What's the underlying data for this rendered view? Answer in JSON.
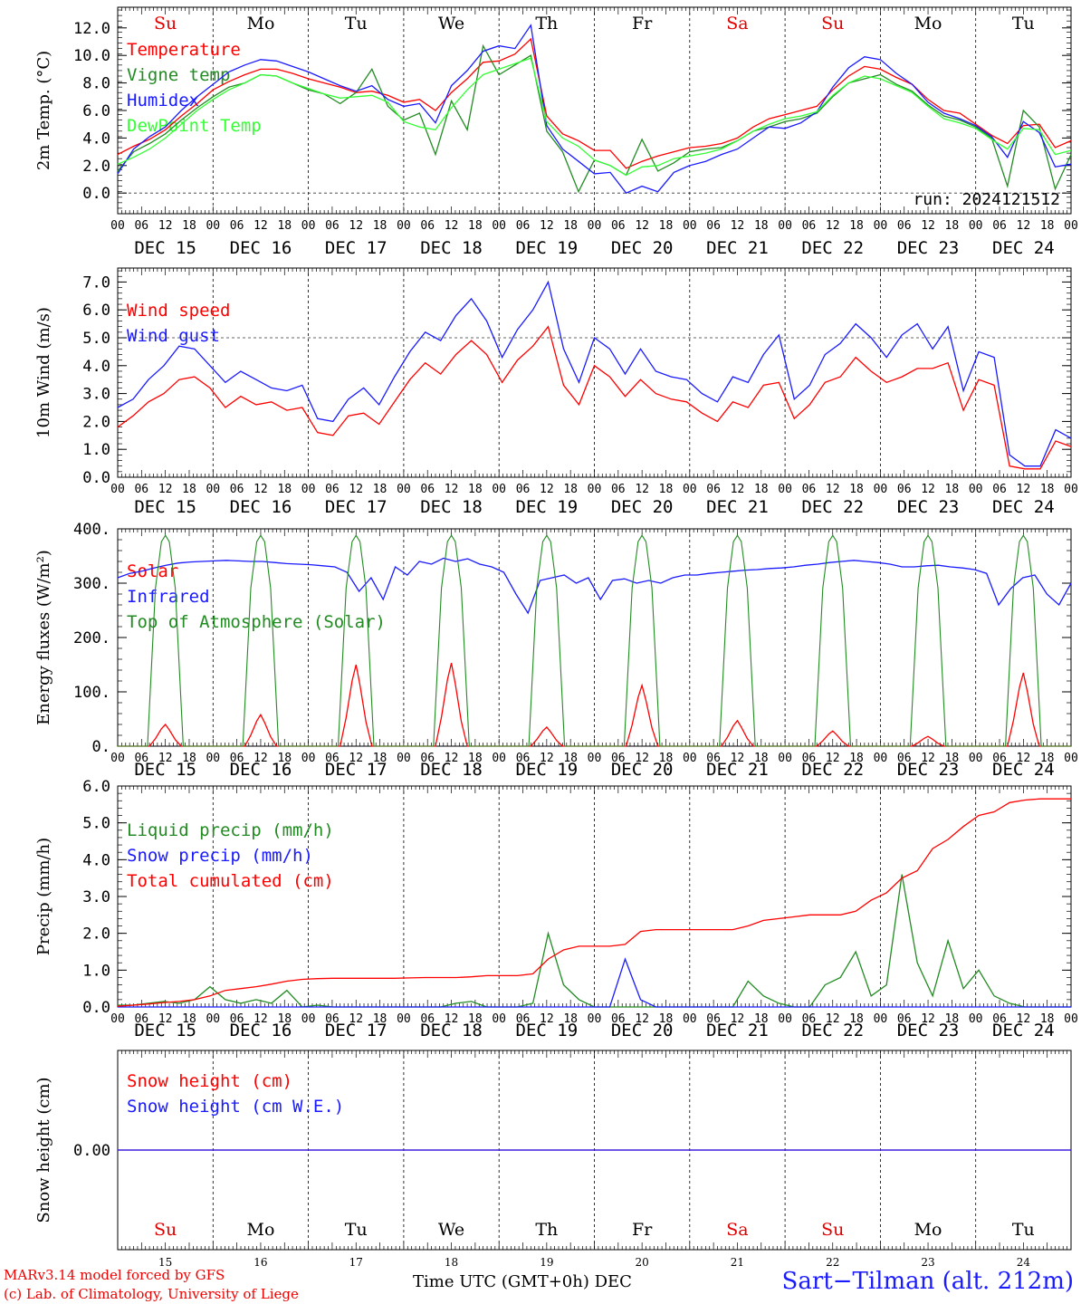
{
  "days": [
    "Su",
    "Mo",
    "Tu",
    "We",
    "Th",
    "Fr",
    "Sa",
    "Su",
    "Mo",
    "Tu"
  ],
  "day_colors": [
    "#e00000",
    "#000000",
    "#000000",
    "#000000",
    "#000000",
    "#000000",
    "#e00000",
    "#e00000",
    "#000000",
    "#000000"
  ],
  "dates": [
    "DEC 15",
    "DEC 16",
    "DEC 17",
    "DEC 18",
    "DEC 19",
    "DEC 20",
    "DEC 21",
    "DEC 22",
    "DEC 23",
    "DEC 24"
  ],
  "day_numbers": [
    "15",
    "16",
    "17",
    "18",
    "19",
    "20",
    "21",
    "22",
    "23",
    "24"
  ],
  "hour_ticks": [
    "00",
    "06",
    "12",
    "18"
  ],
  "hour_end": "00",
  "footer": {
    "model": "MARv3.14 model forced by GFS",
    "lab": "(c) Lab. of Climatology, University of Liege",
    "time_label": "Time UTC (GMT+0h) DEC",
    "station": "Sart−Tilman (alt. 212m)"
  },
  "chart_data": [
    {
      "type": "line",
      "ylabel": "2m Temp. (°C)",
      "ylim": [
        -1.5,
        13.5
      ],
      "yticks": [
        "0.0",
        "2.0",
        "4.0",
        "6.0",
        "8.0",
        "10.0",
        "12.0"
      ],
      "ytick_values": [
        0,
        2,
        4,
        6,
        8,
        10,
        12
      ],
      "ref_line": 0,
      "run_label": "run: 2024121512",
      "x_hours_step": 6,
      "series": [
        {
          "name": "Temperature",
          "color": "#ff0000",
          "values": [
            2.8,
            3.4,
            3.9,
            4.6,
            5.6,
            6.5,
            7.5,
            8.1,
            8.6,
            9.0,
            9.0,
            8.7,
            8.3,
            8.0,
            7.7,
            7.3,
            7.4,
            7.1,
            6.6,
            6.8,
            6.0,
            7.3,
            8.3,
            9.5,
            9.6,
            10.1,
            11.2,
            5.6,
            4.3,
            3.8,
            3.1,
            3.1,
            1.8,
            2.3,
            2.7,
            3.0,
            3.3,
            3.4,
            3.6,
            4.0,
            4.8,
            5.4,
            5.7,
            6.0,
            6.3,
            7.5,
            8.5,
            9.2,
            9.0,
            8.4,
            7.9,
            6.8,
            6.0,
            5.8,
            5.0,
            4.2,
            3.6,
            4.9,
            5.0,
            3.3,
            3.8
          ]
        },
        {
          "name": "Vigne temp",
          "color": "#228b22",
          "values": [
            1.6,
            3.0,
            3.6,
            4.3,
            5.3,
            6.2,
            7.0,
            7.7,
            8.0,
            8.6,
            8.5,
            8.0,
            7.5,
            7.2,
            6.5,
            7.3,
            9.0,
            6.3,
            5.3,
            5.8,
            2.8,
            6.7,
            4.6,
            10.7,
            8.6,
            9.3,
            10.0,
            4.5,
            3.0,
            0.1,
            2.4,
            2.0,
            1.3,
            3.9,
            1.6,
            2.2,
            3.0,
            3.2,
            3.3,
            3.8,
            4.5,
            4.8,
            5.2,
            5.4,
            5.8,
            7.0,
            8.0,
            8.3,
            8.6,
            7.9,
            7.4,
            6.4,
            5.6,
            5.3,
            4.8,
            4.0,
            0.5,
            6.0,
            4.8,
            0.3,
            2.8
          ]
        },
        {
          "name": "Humidex",
          "color": "#1a1aff",
          "values": [
            1.4,
            3.2,
            4.1,
            4.8,
            6.0,
            7.0,
            7.9,
            8.8,
            9.3,
            9.7,
            9.6,
            9.2,
            8.8,
            8.3,
            7.8,
            7.4,
            7.8,
            6.8,
            6.3,
            6.5,
            5.1,
            7.8,
            8.9,
            10.3,
            10.7,
            10.5,
            12.2,
            4.9,
            3.2,
            2.3,
            1.4,
            1.5,
            0.0,
            0.5,
            0.1,
            1.5,
            2.0,
            2.3,
            2.8,
            3.2,
            4.0,
            4.8,
            4.7,
            5.1,
            5.9,
            7.7,
            9.1,
            9.9,
            9.7,
            8.7,
            7.9,
            6.6,
            5.8,
            5.4,
            4.9,
            4.1,
            2.6,
            5.2,
            4.4,
            1.9,
            2.1
          ]
        },
        {
          "name": "DewPoint Temp",
          "color": "#33ff33",
          "values": [
            2.1,
            2.6,
            3.2,
            4.0,
            5.0,
            6.0,
            6.8,
            7.5,
            8.0,
            8.6,
            8.5,
            8.0,
            7.6,
            7.2,
            6.9,
            7.0,
            7.1,
            6.6,
            5.2,
            4.8,
            4.6,
            6.2,
            7.5,
            8.6,
            9.0,
            9.4,
            9.8,
            5.2,
            4.0,
            3.4,
            2.4,
            2.0,
            1.3,
            1.9,
            2.0,
            2.5,
            2.7,
            2.9,
            3.2,
            3.8,
            4.5,
            5.0,
            5.4,
            5.6,
            5.9,
            7.1,
            8.0,
            8.5,
            8.3,
            7.8,
            7.3,
            6.3,
            5.4,
            5.1,
            4.7,
            3.9,
            3.2,
            4.7,
            4.6,
            2.8,
            3.1
          ]
        }
      ]
    },
    {
      "type": "line",
      "ylabel": "10m Wind (m/s)",
      "ylim": [
        0,
        7.5
      ],
      "yticks": [
        "0.0",
        "1.0",
        "2.0",
        "3.0",
        "4.0",
        "5.0",
        "6.0",
        "7.0"
      ],
      "ytick_values": [
        0,
        1,
        2,
        3,
        4,
        5,
        6,
        7
      ],
      "ref_line": 5.0,
      "x_hours_step": 6,
      "series": [
        {
          "name": "Wind speed",
          "color": "#ff0000",
          "values": [
            1.8,
            2.2,
            2.7,
            3.0,
            3.5,
            3.6,
            3.2,
            2.5,
            2.9,
            2.6,
            2.7,
            2.4,
            2.5,
            1.6,
            1.5,
            2.2,
            2.3,
            1.9,
            2.7,
            3.5,
            4.1,
            3.7,
            4.4,
            4.9,
            4.4,
            3.4,
            4.2,
            4.7,
            5.4,
            3.3,
            2.6,
            4.0,
            3.6,
            2.9,
            3.5,
            3.0,
            2.8,
            2.7,
            2.3,
            2.0,
            2.7,
            2.5,
            3.3,
            3.4,
            2.1,
            2.6,
            3.4,
            3.6,
            4.3,
            3.8,
            3.4,
            3.6,
            3.9,
            3.9,
            4.1,
            2.4,
            3.5,
            3.3,
            0.4,
            0.3,
            0.3,
            1.3,
            1.1
          ]
        },
        {
          "name": "Wind gust",
          "color": "#1a1aff",
          "values": [
            2.5,
            2.8,
            3.5,
            4.0,
            4.7,
            4.6,
            4.0,
            3.4,
            3.8,
            3.5,
            3.2,
            3.1,
            3.3,
            2.1,
            2.0,
            2.8,
            3.2,
            2.6,
            3.6,
            4.5,
            5.2,
            4.9,
            5.8,
            6.4,
            5.6,
            4.3,
            5.3,
            6.0,
            7.0,
            4.6,
            3.4,
            5.0,
            4.6,
            3.7,
            4.6,
            3.8,
            3.6,
            3.5,
            3.0,
            2.7,
            3.6,
            3.4,
            4.4,
            5.1,
            2.8,
            3.3,
            4.4,
            4.8,
            5.5,
            5.0,
            4.3,
            5.1,
            5.5,
            4.6,
            5.4,
            3.1,
            4.5,
            4.3,
            0.8,
            0.4,
            0.4,
            1.7,
            1.4
          ]
        }
      ]
    },
    {
      "type": "line",
      "ylabel": "Energy fluxes (W/m²)",
      "ylim": [
        0,
        400
      ],
      "yticks": [
        "0.",
        "100.",
        "200.",
        "300.",
        "400."
      ],
      "ytick_values": [
        0,
        100,
        200,
        300,
        400
      ],
      "x_hours_step": 3,
      "series": [
        {
          "name": "Solar",
          "color": "#ff0000",
          "peaks": [
            40,
            58,
            150,
            153,
            35,
            112,
            47,
            28,
            18,
            135
          ],
          "peak_hour": 12
        },
        {
          "name": "Infrared",
          "color": "#1a1aff",
          "values": [
            310,
            318,
            322,
            328,
            333,
            337,
            339,
            340,
            341,
            342,
            341,
            340,
            340,
            338,
            336,
            335,
            334,
            332,
            330,
            320,
            285,
            310,
            270,
            330,
            315,
            340,
            335,
            346,
            340,
            345,
            335,
            330,
            320,
            280,
            245,
            305,
            310,
            315,
            300,
            310,
            270,
            305,
            308,
            300,
            305,
            300,
            310,
            315,
            315,
            318,
            320,
            322,
            324,
            325,
            327,
            328,
            330,
            333,
            335,
            338,
            340,
            342,
            340,
            338,
            335,
            330,
            330,
            332,
            333,
            330,
            328,
            325,
            318,
            260,
            290,
            310,
            315,
            280,
            260,
            300
          ]
        },
        {
          "name": "Top of Atmosphere (Solar)",
          "color": "#228b22",
          "peak": 388
        }
      ]
    },
    {
      "type": "line",
      "ylabel": "Precip (mm/h)",
      "ylim": [
        0,
        6.0
      ],
      "yticks": [
        "0.0",
        "1.0",
        "2.0",
        "3.0",
        "4.0",
        "5.0",
        "6.0"
      ],
      "ytick_values": [
        0,
        1,
        2,
        3,
        4,
        5,
        6
      ],
      "x_hours_step": 6,
      "series": [
        {
          "name": "Liquid precip (mm/h)",
          "color": "#228b22",
          "values": [
            0.05,
            0.05,
            0.1,
            0.15,
            0.1,
            0.2,
            0.55,
            0.2,
            0.1,
            0.2,
            0.1,
            0.45,
            0.0,
            0.05,
            0.0,
            0.0,
            0.0,
            0.0,
            0.0,
            0.0,
            0.0,
            0.0,
            0.1,
            0.15,
            0.0,
            0.0,
            0.0,
            0.1,
            2.0,
            0.6,
            0.2,
            0.0,
            0.0,
            0.0,
            0.0,
            0.0,
            0.0,
            0.0,
            0.0,
            0.0,
            0.0,
            0.7,
            0.3,
            0.1,
            0.0,
            0.0,
            0.6,
            0.8,
            1.5,
            0.3,
            0.6,
            3.6,
            1.2,
            0.3,
            1.8,
            0.5,
            1.0,
            0.3,
            0.1,
            0.0,
            0.0,
            0.0,
            0.0
          ]
        },
        {
          "name": "Snow precip (mm/h)",
          "color": "#1a1aff",
          "values": [
            0.0,
            0.0,
            0.0,
            0.0,
            0.0,
            0.0,
            0.0,
            0.0,
            0.0,
            0.0,
            0.0,
            0.0,
            0.0,
            0.0,
            0.0,
            0.0,
            0.0,
            0.0,
            0.0,
            0.0,
            0.0,
            0.0,
            0.0,
            0.0,
            0.0,
            0.0,
            0.0,
            0.0,
            0.0,
            0.0,
            0.0,
            0.0,
            0.0,
            1.3,
            0.2,
            0.0,
            0.0,
            0.0,
            0.0,
            0.0,
            0.0,
            0.0,
            0.0,
            0.0,
            0.0,
            0.0,
            0.0,
            0.0,
            0.0,
            0.0,
            0.0,
            0.0,
            0.0,
            0.0,
            0.0,
            0.0,
            0.0,
            0.0,
            0.0,
            0.0,
            0.0,
            0.0,
            0.0
          ]
        },
        {
          "name": "Total cumulated (cm)",
          "color": "#ff0000",
          "values": [
            0.02,
            0.05,
            0.08,
            0.12,
            0.15,
            0.2,
            0.3,
            0.45,
            0.5,
            0.55,
            0.62,
            0.7,
            0.75,
            0.77,
            0.78,
            0.78,
            0.78,
            0.78,
            0.78,
            0.79,
            0.8,
            0.8,
            0.8,
            0.82,
            0.85,
            0.85,
            0.85,
            0.9,
            1.3,
            1.55,
            1.65,
            1.65,
            1.65,
            1.7,
            2.05,
            2.1,
            2.1,
            2.1,
            2.1,
            2.1,
            2.1,
            2.2,
            2.35,
            2.4,
            2.45,
            2.5,
            2.5,
            2.5,
            2.6,
            2.9,
            3.1,
            3.5,
            3.7,
            4.3,
            4.55,
            4.9,
            5.2,
            5.3,
            5.55,
            5.62,
            5.65,
            5.65,
            5.65
          ]
        }
      ]
    },
    {
      "type": "line",
      "ylabel": "Snow height (cm)",
      "ylim": [
        -1,
        1
      ],
      "yticks": [
        "0.00"
      ],
      "ytick_values": [
        0
      ],
      "series": [
        {
          "name": "Snow height (cm)",
          "color": "#ff0000",
          "values": [
            0,
            0
          ]
        },
        {
          "name": "Snow height (cm W.E.)",
          "color": "#1a1aff",
          "values": [
            0,
            0
          ]
        }
      ]
    }
  ]
}
